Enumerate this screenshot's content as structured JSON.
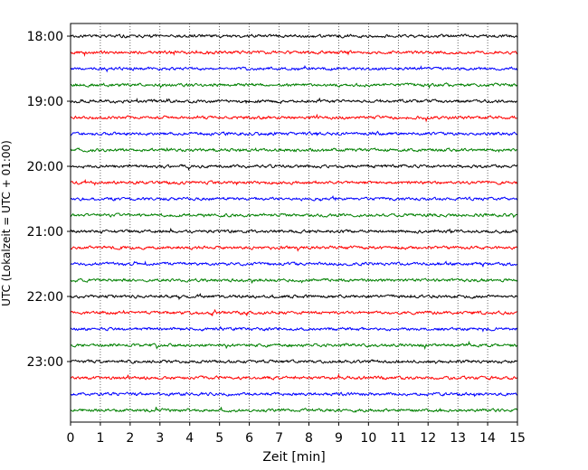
{
  "chart_data": {
    "type": "line",
    "title": "",
    "xlabel": "Zeit  [min]",
    "ylabel": "UTC (Lokalzeit = UTC + 01:00)",
    "xlim": [
      0,
      15
    ],
    "x_ticks": [
      "0",
      "1",
      "2",
      "3",
      "4",
      "5",
      "6",
      "7",
      "8",
      "9",
      "10",
      "11",
      "12",
      "13",
      "14",
      "15"
    ],
    "y_ticks": [
      "18:00",
      "19:00",
      "20:00",
      "21:00",
      "22:00",
      "23:00"
    ],
    "grid": "vertical dotted at each minute",
    "trace_interval_minutes": 15,
    "trace_start": "18:00",
    "trace_count": 24,
    "color_cycle": [
      "#000000",
      "#ff0000",
      "#0000ff",
      "#008000"
    ]
  }
}
